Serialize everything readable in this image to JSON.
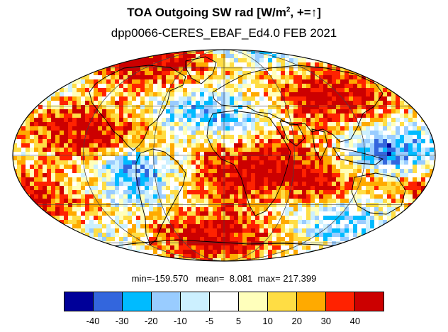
{
  "title": {
    "main": "TOA Outgoing SW rad [W/m",
    "sup": "2",
    "tail": ", +=↑]"
  },
  "subtitle": "dpp0066-CERES_EBAF_Ed4.0 FEB 2021",
  "stats": {
    "min_label": "min=",
    "min": "-159.570",
    "mean_label": "mean=",
    "mean": "8.081",
    "max_label": "max=",
    "max": "217.399"
  },
  "colorbar": {
    "colors": [
      "#000099",
      "#3366dd",
      "#00bbff",
      "#99ccff",
      "#ccf0ff",
      "#ffffff",
      "#ffffbb",
      "#ffdd44",
      "#ffaa00",
      "#ff2200",
      "#cc0000"
    ],
    "tick_labels": [
      "-40",
      "-30",
      "-20",
      "-10",
      "-5",
      "5",
      "10",
      "20",
      "30",
      "40"
    ]
  },
  "map": {
    "projection": "mollweide",
    "ocean_background": "#ffffff",
    "coastline_color": "#000000",
    "graticule_color": "#444444"
  }
}
